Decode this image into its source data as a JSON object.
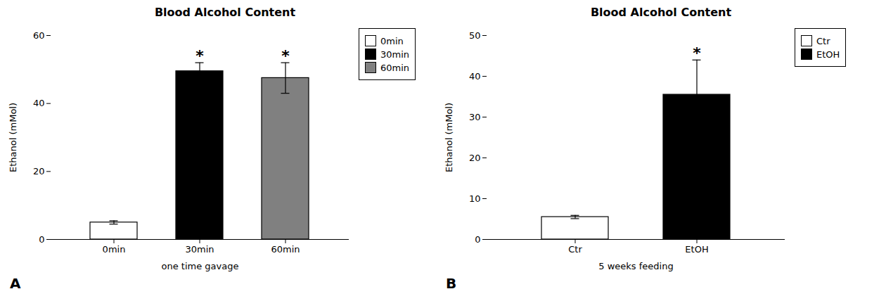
{
  "chart_data": [
    {
      "type": "bar",
      "title": "Blood Alcohol Content",
      "panel_label": "A",
      "xlabel": "one time gavage",
      "ylabel": "Ethanol (mMol)",
      "categories": [
        "0min",
        "30min",
        "60min"
      ],
      "values": [
        5.0,
        49.5,
        47.5
      ],
      "errors": [
        0.5,
        2.5,
        4.5
      ],
      "colors": [
        "#ffffff",
        "#000000",
        "#808080"
      ],
      "annotations": [
        {
          "category": "30min",
          "text": "*"
        },
        {
          "category": "60min",
          "text": "*"
        }
      ],
      "ylim": [
        0,
        60
      ],
      "yticks": [
        0,
        20,
        40,
        60
      ],
      "grid": false,
      "legend": "upper right"
    },
    {
      "type": "bar",
      "title": "Blood Alcohol Content",
      "panel_label": "B",
      "xlabel": "5 weeks feeding",
      "ylabel": "Ethanol (mMol)",
      "categories": [
        "Ctr",
        "EtOH"
      ],
      "values": [
        5.5,
        35.5
      ],
      "errors": [
        0.4,
        8.5
      ],
      "colors": [
        "#ffffff",
        "#000000"
      ],
      "annotations": [
        {
          "category": "EtOH",
          "text": "*"
        }
      ],
      "ylim": [
        0,
        50
      ],
      "yticks": [
        0,
        10,
        20,
        30,
        40,
        50
      ],
      "grid": false,
      "legend": "upper right"
    }
  ]
}
